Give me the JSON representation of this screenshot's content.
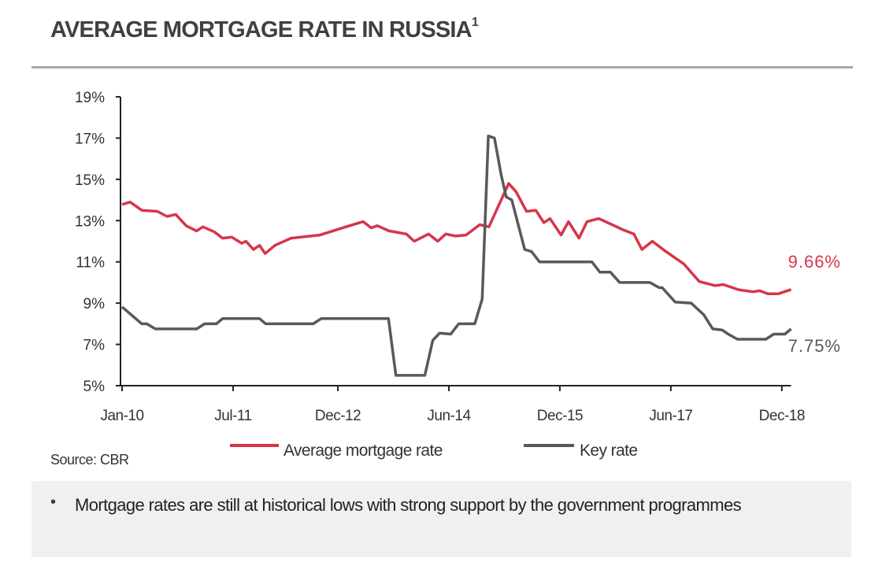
{
  "title": "AVERAGE MORTGAGE RATE IN RUSSIA",
  "title_footnote": "1",
  "source": "Source: CBR",
  "note": {
    "bullet": "•",
    "text": "Mortgage rates are still at historical lows with strong support by the government programmes"
  },
  "chart_data": {
    "type": "line",
    "title": "AVERAGE MORTGAGE RATE IN RUSSIA",
    "xlabel": "",
    "ylabel": "",
    "x_units": "months since Jan-2010",
    "xlim": [
      0,
      108.5
    ],
    "ylim": [
      5,
      19
    ],
    "yticks": [
      5,
      7,
      9,
      11,
      13,
      15,
      17,
      19
    ],
    "ytick_labels": [
      "5%",
      "7%",
      "9%",
      "11%",
      "13%",
      "15%",
      "17%",
      "19%"
    ],
    "xticks": [
      0,
      18,
      35,
      53,
      71,
      89,
      107
    ],
    "xtick_labels": [
      "Jan-10",
      "Jul-11",
      "Dec-12",
      "Jun-14",
      "Dec-15",
      "Jun-17",
      "Dec-18"
    ],
    "grid": false,
    "legend_position": "bottom",
    "series": [
      {
        "name": "Average mortgage rate",
        "color": "#d7354a",
        "end_label": "9.66%",
        "x": [
          0,
          1.3,
          3.2,
          5.7,
          7.3,
          8.7,
          10.4,
          12.1,
          13.1,
          15,
          16.3,
          17.8,
          19.4,
          20.1,
          21.3,
          22.3,
          23.2,
          24.8,
          27.4,
          32.1,
          36.3,
          39.1,
          40.4,
          41.4,
          43.3,
          46.1,
          47.4,
          49.7,
          51.2,
          52.5,
          54.1,
          55.8,
          58,
          59.5,
          62.7,
          63.9,
          65.6,
          67.1,
          68.4,
          69.4,
          71.2,
          72.4,
          74.1,
          75.4,
          77.3,
          81.3,
          83,
          84.3,
          86,
          88.2,
          91.1,
          93.6,
          96.2,
          97.5,
          100,
          102.3,
          103.4,
          104.7,
          106.4,
          108.5
        ],
        "y": [
          13.78,
          13.9,
          13.5,
          13.45,
          13.2,
          13.3,
          12.75,
          12.5,
          12.7,
          12.45,
          12.15,
          12.2,
          11.9,
          12.0,
          11.6,
          11.8,
          11.4,
          11.8,
          12.15,
          12.3,
          12.7,
          12.95,
          12.65,
          12.75,
          12.5,
          12.35,
          12.0,
          12.35,
          12.0,
          12.35,
          12.25,
          12.3,
          12.8,
          12.7,
          14.8,
          14.4,
          13.45,
          13.5,
          12.9,
          13.1,
          12.3,
          12.95,
          12.15,
          12.95,
          13.1,
          12.55,
          12.35,
          11.6,
          12.0,
          11.5,
          10.9,
          10.05,
          9.85,
          9.9,
          9.65,
          9.55,
          9.6,
          9.45,
          9.45,
          9.66
        ]
      },
      {
        "name": "Key rate",
        "color": "#595959",
        "end_label": "7.75%",
        "x": [
          0,
          3.2,
          4,
          5.4,
          12.1,
          13.4,
          15.3,
          16.3,
          22.3,
          23.3,
          31,
          32.3,
          43.2,
          44.4,
          49.1,
          50.4,
          51.5,
          53.3,
          54.6,
          57.2,
          58.4,
          59.4,
          60.4,
          61.5,
          62.3,
          63.2,
          65.3,
          66.4,
          67.7,
          76.2,
          77.5,
          79.2,
          80.7,
          85.6,
          87.1,
          87.6,
          89.7,
          92.3,
          94.3,
          95.8,
          97.3,
          98.3,
          99.8,
          104.4,
          105.7,
          107.5,
          108.5
        ],
        "y": [
          8.82,
          8.0,
          8.0,
          7.75,
          7.75,
          8.0,
          8.0,
          8.25,
          8.25,
          8.0,
          8.0,
          8.25,
          8.25,
          5.5,
          5.5,
          7.2,
          7.55,
          7.5,
          8.0,
          8.0,
          9.2,
          17.1,
          17.0,
          15.2,
          14.15,
          14.0,
          11.6,
          11.5,
          11.0,
          11.0,
          10.5,
          10.5,
          10.0,
          10.0,
          9.75,
          9.75,
          9.05,
          9.0,
          8.45,
          7.75,
          7.7,
          7.5,
          7.25,
          7.25,
          7.5,
          7.5,
          7.75
        ]
      }
    ]
  }
}
